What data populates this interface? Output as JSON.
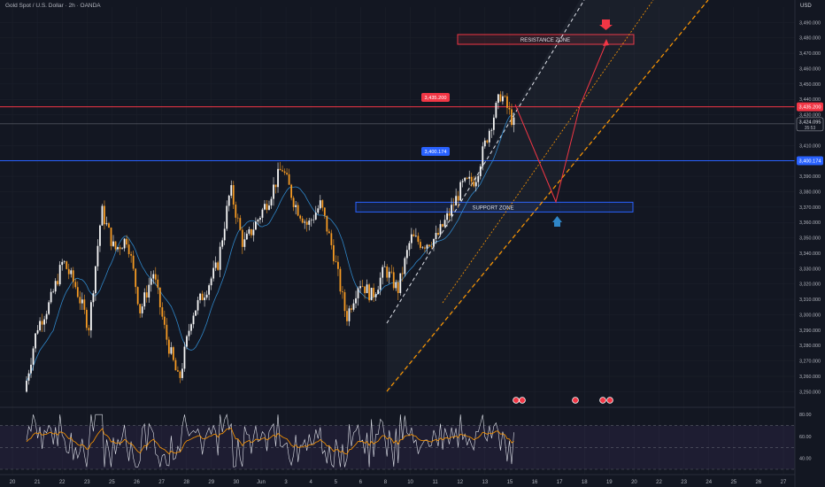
{
  "header": {
    "symbol_title": "Gold Spot / U.S. Dollar · 2h · OANDA",
    "currency": "USD"
  },
  "colors": {
    "bg": "#131722",
    "up": "#f7f7f7",
    "down": "#f59a23",
    "ma": "#2f86c8",
    "resistance": "#f23645",
    "support": "#2962ff",
    "channel": "#ff9800"
  },
  "chart_data": {
    "type": "candlestick",
    "title": "Gold Spot / U.S. Dollar · 2h · OANDA",
    "y_range": [
      3241,
      3500
    ],
    "y_ticks": [
      "3,490.000",
      "3,480.000",
      "3,470.000",
      "3,460.000",
      "3,450.000",
      "3,440.000",
      "3,430.000",
      "3,410.000",
      "3,400.000",
      "3,390.000",
      "3,380.000",
      "3,370.000",
      "3,360.000",
      "3,350.000",
      "3,340.000",
      "3,330.000",
      "3,320.000",
      "3,310.000",
      "3,300.000",
      "3,290.000",
      "3,280.000",
      "3,270.000",
      "3,260.000",
      "3,250.000"
    ],
    "x_ticks": [
      "20",
      "21",
      "22",
      "23",
      "25",
      "26",
      "27",
      "28",
      "29",
      "30",
      "Jun",
      "3",
      "4",
      "5",
      "6",
      "8",
      "10",
      "11",
      "12",
      "13",
      "15",
      "16",
      "17",
      "18",
      "19",
      "20",
      "22",
      "23",
      "24",
      "25",
      "26",
      "27"
    ],
    "key_points": [
      [
        0,
        3250
      ],
      [
        1,
        3292
      ],
      [
        2,
        3308
      ],
      [
        3,
        3335
      ],
      [
        4,
        3318
      ],
      [
        5,
        3292
      ],
      [
        6,
        3368
      ],
      [
        7,
        3342
      ],
      [
        8,
        3350
      ],
      [
        9,
        3302
      ],
      [
        10,
        3328
      ],
      [
        11,
        3286
      ],
      [
        12,
        3256
      ],
      [
        13,
        3300
      ],
      [
        14,
        3315
      ],
      [
        15,
        3332
      ],
      [
        16,
        3382
      ],
      [
        17,
        3345
      ],
      [
        18,
        3360
      ],
      [
        19,
        3376
      ],
      [
        20,
        3396
      ],
      [
        21,
        3372
      ],
      [
        22,
        3358
      ],
      [
        23,
        3372
      ],
      [
        24,
        3340
      ],
      [
        25,
        3298
      ],
      [
        26,
        3322
      ],
      [
        27,
        3312
      ],
      [
        28,
        3330
      ],
      [
        29,
        3316
      ],
      [
        30,
        3350
      ],
      [
        31,
        3346
      ],
      [
        32,
        3350
      ],
      [
        33,
        3366
      ],
      [
        34,
        3384
      ],
      [
        35,
        3388
      ],
      [
        36,
        3418
      ],
      [
        37,
        3444
      ],
      [
        38,
        3424
      ]
    ],
    "price_labels": {
      "resistance_price": "3,435.200",
      "support_price": "3,400.174",
      "current_price": "3,424.095",
      "countdown": "35:53",
      "resistance_axis": "3,435.200",
      "support_axis": "3,400.174"
    },
    "levels": {
      "resistance": 3435.2,
      "current": 3424.095,
      "support": 3400.174
    },
    "zones": {
      "resistance_zone": "RESISTANCE ZONE",
      "support_zone": "SUPPORT ZONE",
      "resistance_range": [
        3477,
        3481
      ],
      "support_range": [
        3368,
        3372
      ]
    },
    "rsi": {
      "y_ticks": [
        "80.00",
        "60.00",
        "40.00"
      ],
      "range": [
        30,
        85
      ]
    }
  }
}
